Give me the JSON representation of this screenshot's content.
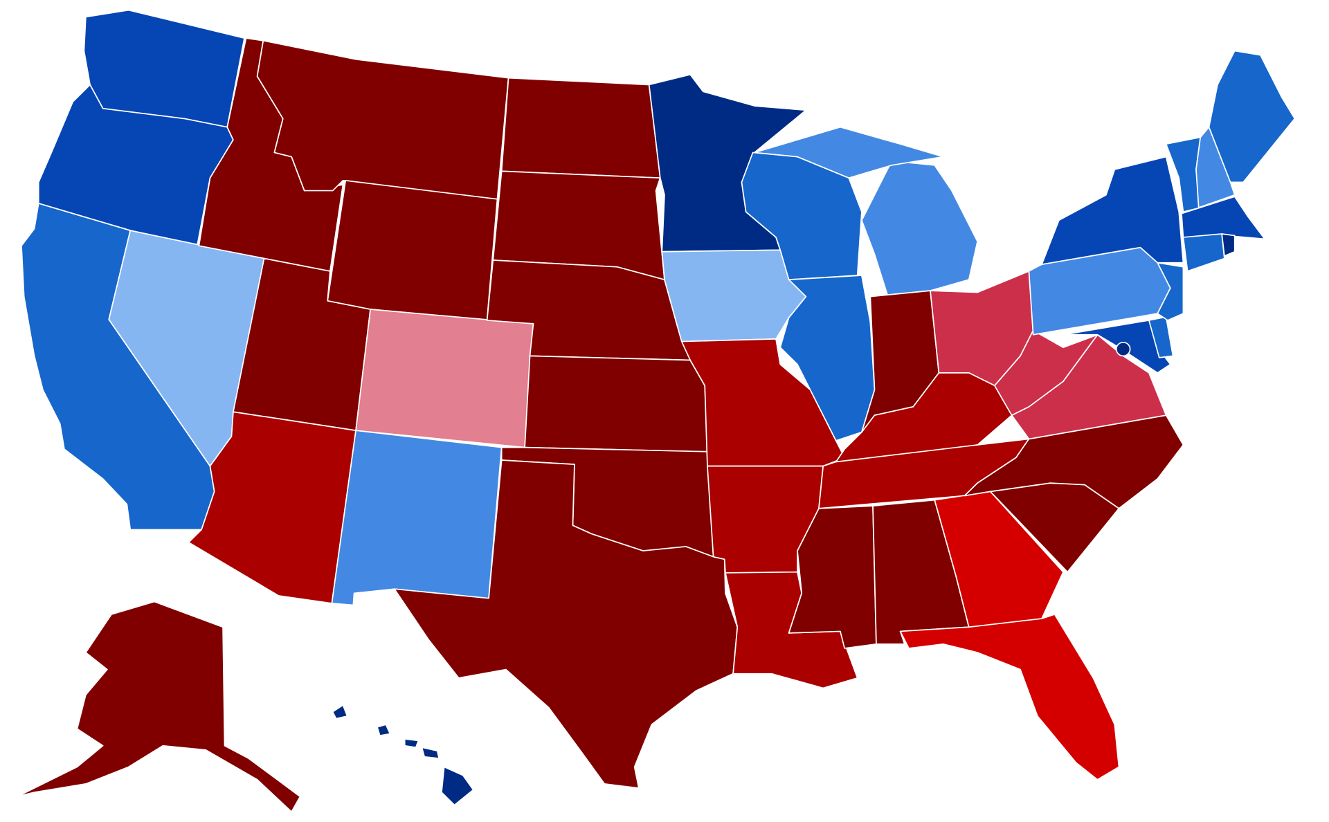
{
  "map": {
    "palette": {
      "solid_red": "#800000",
      "likely_red": "#aa0000",
      "lean_red": "#d40000",
      "tilt_red": "#cc2f4a",
      "faint_red": "#e27f90",
      "solid_blue": "#002b84",
      "likely_blue": "#0645b4",
      "lean_blue": "#1666cb",
      "tilt_blue": "#4389e3",
      "faint_blue": "#86b6f2"
    },
    "states": {
      "WA": "#0645b4",
      "OR": "#0645b4",
      "CA": "#1666cb",
      "NV": "#86b6f2",
      "ID": "#800000",
      "MT": "#800000",
      "WY": "#800000",
      "UT": "#800000",
      "CO": "#e27f90",
      "AZ": "#aa0000",
      "NM": "#4389e3",
      "ND": "#800000",
      "SD": "#800000",
      "NE": "#800000",
      "KS": "#800000",
      "OK": "#800000",
      "TX": "#800000",
      "MN": "#002b84",
      "IA": "#86b6f2",
      "MO": "#aa0000",
      "AR": "#aa0000",
      "LA": "#aa0000",
      "WI": "#1666cb",
      "IL": "#1666cb",
      "MI": "#4389e3",
      "MI_UP": "#4389e3",
      "IN": "#800000",
      "OH": "#cc2f4a",
      "KY": "#aa0000",
      "TN": "#aa0000",
      "MS": "#800000",
      "AL": "#800000",
      "GA": "#d40000",
      "FL": "#d40000",
      "SC": "#800000",
      "NC": "#800000",
      "VA": "#cc2f4a",
      "WV": "#cc2f4a",
      "PA": "#4389e3",
      "NY": "#0645b4",
      "MD": "#0645b4",
      "DE": "#1666cb",
      "NJ": "#1666cb",
      "VT": "#1666cb",
      "NH": "#4389e3",
      "ME": "#1666cb",
      "MA": "#0645b4",
      "CT": "#1666cb",
      "RI": "#002b84",
      "DC": "#002b84",
      "AK": "#800000",
      "HI": "#002b84"
    }
  }
}
